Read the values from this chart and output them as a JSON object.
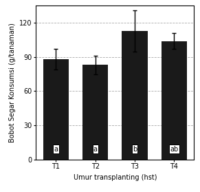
{
  "categories": [
    "T1",
    "T2",
    "T3",
    "T4"
  ],
  "values": [
    88,
    83,
    113,
    104
  ],
  "errors": [
    9,
    8,
    18,
    7
  ],
  "labels": [
    "a",
    "a",
    "b",
    "ab"
  ],
  "bar_color": "#1a1a1a",
  "ylabel": "Bobot Segar Konsumsi (g/tanaman)",
  "xlabel": "Umur transplanting (hst)",
  "ylim": [
    0,
    135
  ],
  "yticks": [
    0,
    30,
    60,
    90,
    120
  ],
  "grid_color": "#aaaaaa",
  "label_fontsize": 7.0,
  "tick_fontsize": 7.0,
  "bar_width": 0.65,
  "label_box_facecolor": "white",
  "label_box_edgecolor": "black"
}
